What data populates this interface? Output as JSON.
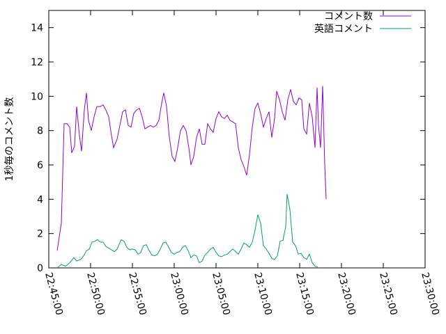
{
  "chart_data": {
    "type": "line",
    "title": "",
    "xlabel": "",
    "ylabel": "1秒毎のコメント数",
    "xlim": [
      "22:45:00",
      "23:30:00"
    ],
    "ylim": [
      0,
      15
    ],
    "xticks": [
      "22:45:00",
      "22:50:00",
      "22:55:00",
      "23:00:00",
      "23:05:00",
      "23:10:00",
      "23:15:00",
      "23:20:00",
      "23:25:00",
      "23:30:00"
    ],
    "yticks": [
      "0",
      "2",
      "4",
      "6",
      "8",
      "10",
      "12",
      "14"
    ],
    "grid": false,
    "legend_position": "top-right",
    "series": [
      {
        "name": "コメント数",
        "color": "#9400d3",
        "points": [
          [
            "22:46:00",
            1.0
          ],
          [
            "22:46:30",
            2.6
          ],
          [
            "22:46:50",
            8.4
          ],
          [
            "22:47:10",
            8.4
          ],
          [
            "22:47:30",
            8.2
          ],
          [
            "22:47:45",
            6.7
          ],
          [
            "22:48:05",
            7.1
          ],
          [
            "22:48:20",
            9.4
          ],
          [
            "22:48:40",
            7.7
          ],
          [
            "22:48:55",
            6.8
          ],
          [
            "22:49:15",
            9.2
          ],
          [
            "22:49:30",
            10.2
          ],
          [
            "22:49:45",
            8.6
          ],
          [
            "22:50:05",
            8.0
          ],
          [
            "22:50:25",
            8.8
          ],
          [
            "22:50:45",
            9.4
          ],
          [
            "22:51:10",
            9.4
          ],
          [
            "22:51:30",
            9.5
          ],
          [
            "22:51:50",
            9.2
          ],
          [
            "22:52:10",
            8.8
          ],
          [
            "22:52:30",
            7.7
          ],
          [
            "22:52:45",
            7.0
          ],
          [
            "22:53:10",
            7.5
          ],
          [
            "22:53:30",
            8.3
          ],
          [
            "22:53:50",
            9.1
          ],
          [
            "22:54:10",
            9.2
          ],
          [
            "22:54:30",
            8.3
          ],
          [
            "22:54:50",
            8.2
          ],
          [
            "22:55:10",
            9.0
          ],
          [
            "22:55:30",
            9.2
          ],
          [
            "22:55:50",
            9.3
          ],
          [
            "22:56:10",
            8.8
          ],
          [
            "22:56:30",
            8.1
          ],
          [
            "22:56:50",
            8.2
          ],
          [
            "22:57:10",
            8.3
          ],
          [
            "22:57:30",
            8.2
          ],
          [
            "22:57:50",
            8.3
          ],
          [
            "22:58:10",
            8.6
          ],
          [
            "22:58:30",
            9.6
          ],
          [
            "22:58:45",
            10.2
          ],
          [
            "22:59:05",
            9.4
          ],
          [
            "22:59:25",
            7.6
          ],
          [
            "22:59:45",
            6.5
          ],
          [
            "23:00:05",
            6.2
          ],
          [
            "23:00:25",
            7.0
          ],
          [
            "23:00:45",
            8.0
          ],
          [
            "23:01:05",
            8.3
          ],
          [
            "23:01:25",
            8.0
          ],
          [
            "23:01:45",
            7.0
          ],
          [
            "23:02:00",
            6.0
          ],
          [
            "23:02:20",
            6.5
          ],
          [
            "23:02:40",
            7.6
          ],
          [
            "23:03:00",
            8.1
          ],
          [
            "23:03:20",
            7.2
          ],
          [
            "23:03:40",
            7.2
          ],
          [
            "23:04:00",
            8.4
          ],
          [
            "23:04:20",
            8.1
          ],
          [
            "23:04:40",
            7.9
          ],
          [
            "23:05:00",
            8.7
          ],
          [
            "23:05:20",
            9.1
          ],
          [
            "23:05:40",
            8.8
          ],
          [
            "23:06:00",
            8.7
          ],
          [
            "23:06:20",
            8.9
          ],
          [
            "23:06:40",
            8.6
          ],
          [
            "23:07:00",
            8.5
          ],
          [
            "23:07:20",
            8.4
          ],
          [
            "23:07:40",
            7.0
          ],
          [
            "23:08:00",
            6.3
          ],
          [
            "23:08:20",
            5.9
          ],
          [
            "23:08:40",
            5.4
          ],
          [
            "23:09:00",
            6.6
          ],
          [
            "23:09:20",
            8.2
          ],
          [
            "23:09:40",
            9.3
          ],
          [
            "23:10:00",
            9.6
          ],
          [
            "23:10:20",
            9.0
          ],
          [
            "23:10:40",
            8.2
          ],
          [
            "23:11:00",
            8.7
          ],
          [
            "23:11:20",
            9.1
          ],
          [
            "23:11:40",
            7.6
          ],
          [
            "23:12:00",
            8.7
          ],
          [
            "23:12:15",
            10.3
          ],
          [
            "23:12:35",
            9.8
          ],
          [
            "23:12:55",
            9.1
          ],
          [
            "23:13:15",
            8.6
          ],
          [
            "23:13:35",
            9.8
          ],
          [
            "23:13:55",
            10.4
          ],
          [
            "23:14:15",
            9.7
          ],
          [
            "23:14:35",
            9.5
          ],
          [
            "23:14:55",
            9.9
          ],
          [
            "23:15:15",
            9.8
          ],
          [
            "23:15:30",
            8.1
          ],
          [
            "23:15:50",
            7.8
          ],
          [
            "23:16:10",
            9.6
          ],
          [
            "23:16:30",
            8.8
          ],
          [
            "23:16:50",
            7.0
          ],
          [
            "23:17:05",
            10.5
          ],
          [
            "23:17:15",
            8.3
          ],
          [
            "23:17:30",
            7.0
          ],
          [
            "23:17:45",
            10.6
          ],
          [
            "23:18:00",
            6.0
          ],
          [
            "23:18:10",
            4.0
          ]
        ]
      },
      {
        "name": "英語コメント",
        "color": "#009e73",
        "points": [
          [
            "22:46:00",
            0.0
          ],
          [
            "22:46:30",
            0.2
          ],
          [
            "22:47:00",
            0.1
          ],
          [
            "22:47:30",
            0.3
          ],
          [
            "22:48:00",
            0.6
          ],
          [
            "22:48:20",
            0.4
          ],
          [
            "22:48:50",
            0.5
          ],
          [
            "22:49:10",
            0.7
          ],
          [
            "22:49:30",
            1.0
          ],
          [
            "22:49:50",
            1.1
          ],
          [
            "22:50:10",
            1.5
          ],
          [
            "22:50:30",
            1.55
          ],
          [
            "22:50:50",
            1.65
          ],
          [
            "22:51:10",
            1.5
          ],
          [
            "22:51:30",
            1.5
          ],
          [
            "22:51:50",
            1.25
          ],
          [
            "22:52:10",
            1.15
          ],
          [
            "22:52:30",
            1.05
          ],
          [
            "22:52:50",
            0.95
          ],
          [
            "22:53:10",
            1.1
          ],
          [
            "22:53:40",
            1.65
          ],
          [
            "22:54:00",
            1.55
          ],
          [
            "22:54:20",
            1.2
          ],
          [
            "22:54:40",
            1.05
          ],
          [
            "22:55:00",
            1.1
          ],
          [
            "22:55:20",
            1.05
          ],
          [
            "22:55:40",
            0.8
          ],
          [
            "22:56:00",
            0.9
          ],
          [
            "22:56:20",
            1.3
          ],
          [
            "22:56:40",
            1.35
          ],
          [
            "22:57:00",
            1.0
          ],
          [
            "22:57:20",
            0.75
          ],
          [
            "22:57:40",
            0.7
          ],
          [
            "22:58:00",
            0.8
          ],
          [
            "22:58:20",
            1.1
          ],
          [
            "22:58:40",
            1.45
          ],
          [
            "22:59:00",
            1.5
          ],
          [
            "22:59:20",
            1.2
          ],
          [
            "22:59:40",
            0.9
          ],
          [
            "23:00:00",
            0.8
          ],
          [
            "23:00:20",
            0.9
          ],
          [
            "23:00:40",
            0.95
          ],
          [
            "23:01:00",
            1.2
          ],
          [
            "23:01:20",
            1.3
          ],
          [
            "23:01:40",
            1.0
          ],
          [
            "23:02:00",
            0.6
          ],
          [
            "23:02:20",
            0.75
          ],
          [
            "23:02:40",
            0.7
          ],
          [
            "23:03:00",
            0.3
          ],
          [
            "23:03:20",
            0.4
          ],
          [
            "23:03:40",
            0.75
          ],
          [
            "23:04:00",
            0.9
          ],
          [
            "23:04:20",
            1.1
          ],
          [
            "23:04:40",
            1.2
          ],
          [
            "23:05:00",
            0.9
          ],
          [
            "23:05:20",
            0.7
          ],
          [
            "23:05:40",
            0.65
          ],
          [
            "23:06:00",
            0.75
          ],
          [
            "23:06:20",
            0.8
          ],
          [
            "23:06:40",
            0.95
          ],
          [
            "23:07:00",
            1.1
          ],
          [
            "23:07:20",
            0.95
          ],
          [
            "23:07:40",
            0.8
          ],
          [
            "23:08:00",
            1.1
          ],
          [
            "23:08:20",
            1.45
          ],
          [
            "23:08:40",
            1.35
          ],
          [
            "23:09:00",
            1.2
          ],
          [
            "23:09:20",
            1.5
          ],
          [
            "23:09:40",
            2.2
          ],
          [
            "23:10:00",
            3.1
          ],
          [
            "23:10:20",
            2.6
          ],
          [
            "23:10:40",
            1.3
          ],
          [
            "23:11:00",
            1.1
          ],
          [
            "23:11:20",
            0.85
          ],
          [
            "23:11:40",
            0.55
          ],
          [
            "23:12:00",
            0.5
          ],
          [
            "23:12:20",
            0.7
          ],
          [
            "23:12:40",
            1.55
          ],
          [
            "23:13:00",
            1.6
          ],
          [
            "23:13:20",
            2.4
          ],
          [
            "23:13:30",
            4.3
          ],
          [
            "23:13:50",
            3.4
          ],
          [
            "23:14:10",
            1.5
          ],
          [
            "23:14:30",
            1.3
          ],
          [
            "23:14:50",
            0.8
          ],
          [
            "23:15:10",
            0.85
          ],
          [
            "23:15:30",
            0.6
          ],
          [
            "23:15:50",
            0.5
          ],
          [
            "23:16:10",
            0.8
          ],
          [
            "23:16:30",
            0.3
          ],
          [
            "23:16:50",
            0.1
          ],
          [
            "23:17:10",
            0.05
          ]
        ]
      }
    ]
  }
}
